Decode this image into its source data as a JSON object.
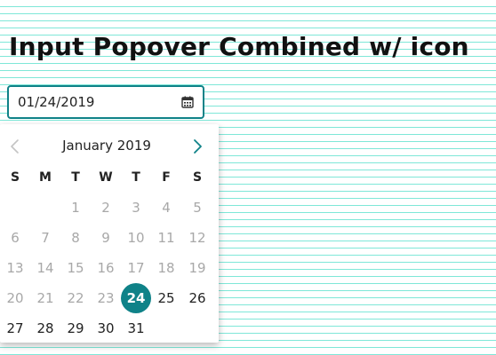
{
  "page": {
    "title": "Input Popover Combined w/ icon"
  },
  "date_input": {
    "value": "01/24/2019",
    "icon": "calendar-icon",
    "accent_color": "#0f8288"
  },
  "calendar": {
    "month_label": "January 2019",
    "prev_icon": "chevron-left-icon",
    "next_icon": "chevron-right-icon",
    "weekdays": [
      "S",
      "M",
      "T",
      "W",
      "T",
      "F",
      "S"
    ],
    "weeks": [
      [
        null,
        null,
        1,
        2,
        3,
        4,
        5
      ],
      [
        6,
        7,
        8,
        9,
        10,
        11,
        12
      ],
      [
        13,
        14,
        15,
        16,
        17,
        18,
        19
      ],
      [
        20,
        21,
        22,
        23,
        24,
        25,
        26
      ],
      [
        27,
        28,
        29,
        30,
        31,
        null,
        null
      ]
    ],
    "selected_day": 24,
    "disabled_before_day": 24,
    "selected_color": "#0f8288"
  }
}
